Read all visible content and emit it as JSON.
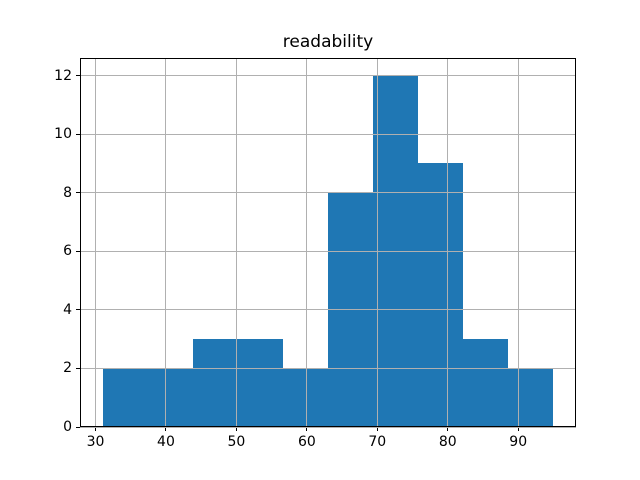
{
  "chart_data": {
    "type": "bar",
    "subtype": "histogram",
    "title": "readability",
    "xlabel": "",
    "ylabel": "",
    "bin_edges": [
      31,
      37.4,
      43.8,
      50.2,
      56.6,
      63,
      69.4,
      75.8,
      82.2,
      88.6,
      95
    ],
    "counts": [
      2,
      2,
      3,
      3,
      2,
      8,
      12,
      9,
      3,
      2
    ],
    "x_ticks": [
      30,
      40,
      50,
      60,
      70,
      80,
      90
    ],
    "y_ticks": [
      0,
      2,
      4,
      6,
      8,
      10,
      12
    ],
    "xlim": [
      27.8,
      98.2
    ],
    "ylim": [
      0,
      12.6
    ],
    "grid": true,
    "grid_over_bars": true,
    "legend": "none",
    "bar_color": "#1f77b4",
    "grid_color": "#b0b0b0",
    "spine_color": "#000000",
    "text_color": "#000000",
    "background_color": "#ffffff"
  }
}
